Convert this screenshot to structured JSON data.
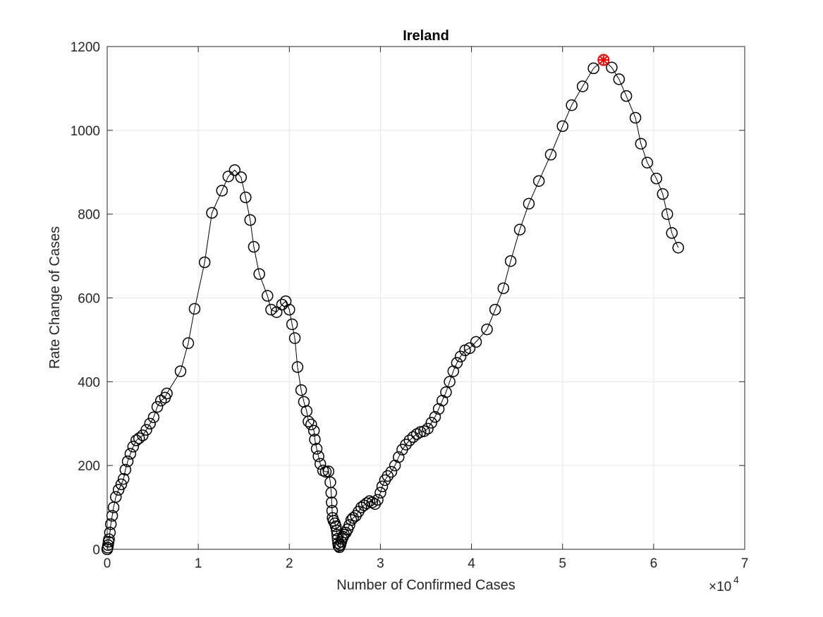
{
  "chart_data": {
    "type": "scatter",
    "title": "Ireland",
    "xlabel": "Number of Confirmed Cases",
    "ylabel": "Rate Change of Cases",
    "x_exponent_label": "×10",
    "x_exponent_power": "4",
    "xlim": [
      0,
      70000
    ],
    "ylim": [
      0,
      1200
    ],
    "x_ticks": [
      0,
      10000,
      20000,
      30000,
      40000,
      50000,
      60000,
      70000
    ],
    "x_tick_labels": [
      "0",
      "1",
      "2",
      "3",
      "4",
      "5",
      "6",
      "7"
    ],
    "y_ticks": [
      0,
      200,
      400,
      600,
      800,
      1000,
      1200
    ],
    "y_tick_labels": [
      "0",
      "200",
      "400",
      "600",
      "800",
      "1000",
      "1200"
    ],
    "grid": true,
    "series": [
      {
        "marker": "open-circle",
        "line": "solid",
        "color": "#000000",
        "points": [
          [
            0,
            0
          ],
          [
            50,
            4
          ],
          [
            100,
            10
          ],
          [
            150,
            18
          ],
          [
            200,
            24
          ],
          [
            300,
            40
          ],
          [
            400,
            60
          ],
          [
            550,
            80
          ],
          [
            700,
            100
          ],
          [
            950,
            125
          ],
          [
            1250,
            142
          ],
          [
            1550,
            155
          ],
          [
            1800,
            168
          ],
          [
            2000,
            190
          ],
          [
            2250,
            210
          ],
          [
            2550,
            228
          ],
          [
            2850,
            245
          ],
          [
            3200,
            260
          ],
          [
            3500,
            265
          ],
          [
            3900,
            272
          ],
          [
            4300,
            285
          ],
          [
            4700,
            300
          ],
          [
            5100,
            315
          ],
          [
            5500,
            340
          ],
          [
            5900,
            355
          ],
          [
            6350,
            362
          ],
          [
            6550,
            372
          ],
          [
            8050,
            425
          ],
          [
            8900,
            492
          ],
          [
            9600,
            574
          ],
          [
            10700,
            685
          ],
          [
            11500,
            803
          ],
          [
            12600,
            856
          ],
          [
            13300,
            890
          ],
          [
            14000,
            905
          ],
          [
            14700,
            888
          ],
          [
            15200,
            840
          ],
          [
            15700,
            786
          ],
          [
            16100,
            722
          ],
          [
            16700,
            657
          ],
          [
            17600,
            605
          ],
          [
            18000,
            572
          ],
          [
            18600,
            566
          ],
          [
            19200,
            584
          ],
          [
            19600,
            592
          ],
          [
            20000,
            572
          ],
          [
            20300,
            537
          ],
          [
            20600,
            504
          ],
          [
            20900,
            435
          ],
          [
            21300,
            380
          ],
          [
            21600,
            352
          ],
          [
            21900,
            330
          ],
          [
            22100,
            305
          ],
          [
            22400,
            298
          ],
          [
            22700,
            283
          ],
          [
            22800,
            262
          ],
          [
            23000,
            240
          ],
          [
            23200,
            222
          ],
          [
            23400,
            204
          ],
          [
            23700,
            188
          ],
          [
            24000,
            185
          ],
          [
            24300,
            186
          ],
          [
            24500,
            160
          ],
          [
            24600,
            135
          ],
          [
            24650,
            112
          ],
          [
            24700,
            92
          ],
          [
            24750,
            75
          ],
          [
            24850,
            68
          ],
          [
            25000,
            62
          ],
          [
            25100,
            55
          ],
          [
            25200,
            45
          ],
          [
            25250,
            35
          ],
          [
            25300,
            25
          ],
          [
            25350,
            15
          ],
          [
            25400,
            8
          ],
          [
            25500,
            5
          ],
          [
            25600,
            10
          ],
          [
            25700,
            18
          ],
          [
            25800,
            25
          ],
          [
            25900,
            30
          ],
          [
            26000,
            35
          ],
          [
            26200,
            40
          ],
          [
            26400,
            48
          ],
          [
            26600,
            58
          ],
          [
            26800,
            70
          ],
          [
            27000,
            75
          ],
          [
            27300,
            80
          ],
          [
            27600,
            90
          ],
          [
            27900,
            100
          ],
          [
            28200,
            105
          ],
          [
            28500,
            110
          ],
          [
            28800,
            115
          ],
          [
            29100,
            112
          ],
          [
            29400,
            108
          ],
          [
            29700,
            118
          ],
          [
            30000,
            135
          ],
          [
            30200,
            150
          ],
          [
            30500,
            165
          ],
          [
            30800,
            175
          ],
          [
            31200,
            185
          ],
          [
            31600,
            200
          ],
          [
            32000,
            220
          ],
          [
            32400,
            238
          ],
          [
            32800,
            250
          ],
          [
            33200,
            260
          ],
          [
            33600,
            268
          ],
          [
            34000,
            275
          ],
          [
            34400,
            280
          ],
          [
            34800,
            282
          ],
          [
            35200,
            288
          ],
          [
            35600,
            302
          ],
          [
            36000,
            316
          ],
          [
            36400,
            335
          ],
          [
            36800,
            355
          ],
          [
            37200,
            375
          ],
          [
            37600,
            400
          ],
          [
            38000,
            425
          ],
          [
            38400,
            445
          ],
          [
            38800,
            460
          ],
          [
            39300,
            475
          ],
          [
            39800,
            480
          ],
          [
            40500,
            495
          ],
          [
            41700,
            525
          ],
          [
            42600,
            572
          ],
          [
            43500,
            623
          ],
          [
            44300,
            688
          ],
          [
            45300,
            763
          ],
          [
            46300,
            825
          ],
          [
            47400,
            879
          ],
          [
            48700,
            942
          ],
          [
            50000,
            1010
          ],
          [
            51000,
            1060
          ],
          [
            52200,
            1105
          ],
          [
            53400,
            1148
          ],
          [
            54500,
            1168
          ],
          [
            55400,
            1150
          ],
          [
            56200,
            1122
          ],
          [
            57000,
            1082
          ],
          [
            58000,
            1030
          ],
          [
            58600,
            968
          ],
          [
            59300,
            923
          ],
          [
            60300,
            885
          ],
          [
            61000,
            848
          ],
          [
            61500,
            800
          ],
          [
            62000,
            755
          ],
          [
            62700,
            720
          ]
        ]
      }
    ],
    "highlight": {
      "x": 54500,
      "y": 1168,
      "color": "#ff0000",
      "marker": "circle-star"
    }
  }
}
